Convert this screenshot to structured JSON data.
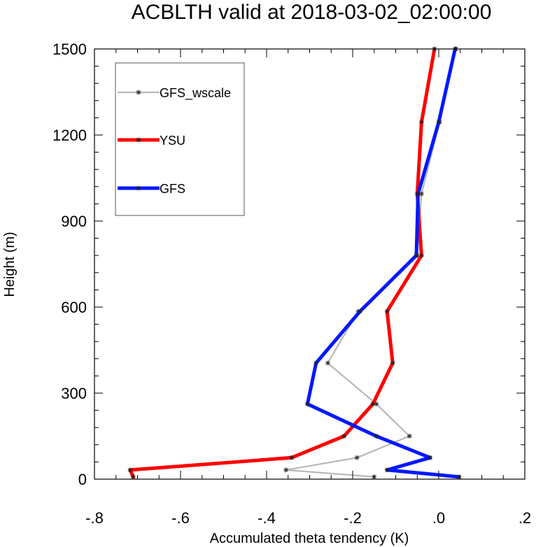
{
  "chart_data": {
    "type": "line",
    "title": "ACBLTH valid at 2018-03-02_02:00:00",
    "xlabel": "Accumulated theta tendency (K)",
    "ylabel": "Height (m)",
    "xlim": [
      -0.8,
      0.2
    ],
    "ylim": [
      0,
      1500
    ],
    "x_ticks": [
      -0.8,
      -0.6,
      -0.4,
      -0.2,
      0.0,
      0.2
    ],
    "x_tick_labels": [
      "-.8",
      "-.6",
      "-.4",
      "-.2",
      ".0",
      ".2"
    ],
    "y_ticks": [
      0,
      300,
      600,
      900,
      1200,
      1500
    ],
    "y_tick_labels": [
      "0",
      "300",
      "600",
      "900",
      "1200",
      "1500"
    ],
    "grid": false,
    "legend_position": "top-left",
    "series": [
      {
        "name": "GFS_wscale",
        "color": "#b8b8b8",
        "points": [
          {
            "x": -0.15,
            "y": 8
          },
          {
            "x": -0.355,
            "y": 32
          },
          {
            "x": -0.19,
            "y": 75
          },
          {
            "x": -0.068,
            "y": 150
          },
          {
            "x": -0.145,
            "y": 262
          },
          {
            "x": -0.258,
            "y": 405
          },
          {
            "x": -0.187,
            "y": 585
          },
          {
            "x": -0.05,
            "y": 780
          },
          {
            "x": -0.04,
            "y": 995
          },
          {
            "x": 0.002,
            "y": 1245
          },
          {
            "x": 0.04,
            "y": 1500
          }
        ]
      },
      {
        "name": "YSU",
        "color": "#ff0000",
        "points": [
          {
            "x": -0.71,
            "y": 8
          },
          {
            "x": -0.717,
            "y": 32
          },
          {
            "x": -0.342,
            "y": 75
          },
          {
            "x": -0.22,
            "y": 150
          },
          {
            "x": -0.153,
            "y": 262
          },
          {
            "x": -0.107,
            "y": 405
          },
          {
            "x": -0.12,
            "y": 585
          },
          {
            "x": -0.04,
            "y": 780
          },
          {
            "x": -0.05,
            "y": 995
          },
          {
            "x": -0.04,
            "y": 1245
          },
          {
            "x": -0.01,
            "y": 1500
          }
        ]
      },
      {
        "name": "GFS",
        "color": "#0018ff",
        "points": [
          {
            "x": 0.047,
            "y": 8
          },
          {
            "x": -0.12,
            "y": 32
          },
          {
            "x": -0.02,
            "y": 75
          },
          {
            "x": -0.145,
            "y": 150
          },
          {
            "x": -0.305,
            "y": 262
          },
          {
            "x": -0.285,
            "y": 405
          },
          {
            "x": -0.183,
            "y": 585
          },
          {
            "x": -0.052,
            "y": 780
          },
          {
            "x": -0.048,
            "y": 995
          },
          {
            "x": 0.0,
            "y": 1245
          },
          {
            "x": 0.038,
            "y": 1500
          }
        ]
      }
    ]
  }
}
